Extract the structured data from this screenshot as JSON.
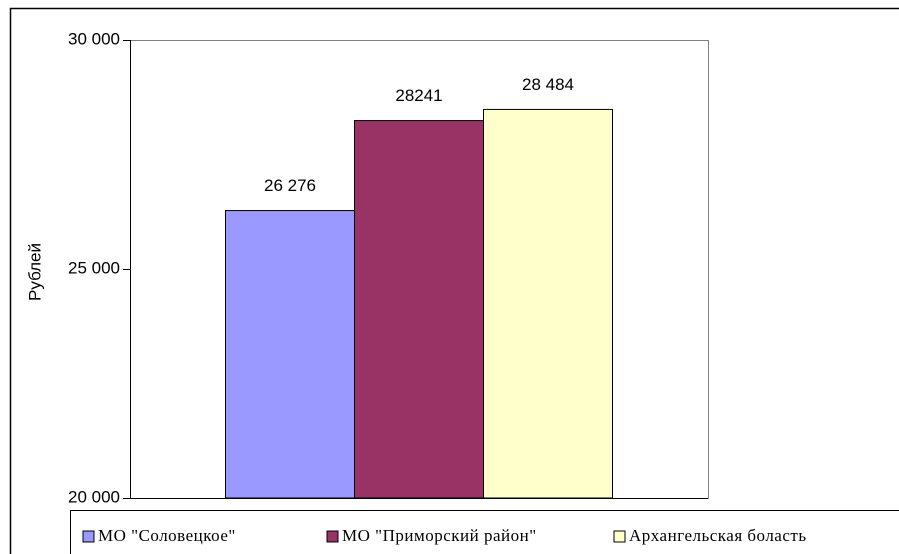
{
  "chart_data": {
    "type": "bar",
    "y_label": "Рублей",
    "categories": [
      null
    ],
    "series": [
      {
        "name": "МО \"Соловецкое\"",
        "color": "#9999ff",
        "values": [
          26276
        ],
        "value_labels": [
          "26 276"
        ]
      },
      {
        "name": "МО \"Приморский район\"",
        "color": "#993366",
        "values": [
          28241
        ]
      },
      {
        "name": "Архангельская боласть",
        "color": "#ffffcc",
        "values": [
          28484
        ],
        "value_labels": [
          "28 484"
        ]
      }
    ],
    "ylim": [
      20000,
      30000
    ],
    "yticks": [
      {
        "value": 20000,
        "label": "20 000"
      },
      {
        "value": 25000,
        "label": "25 000"
      },
      {
        "value": 30000,
        "label": "30 000"
      }
    ],
    "legend": "bottom"
  }
}
